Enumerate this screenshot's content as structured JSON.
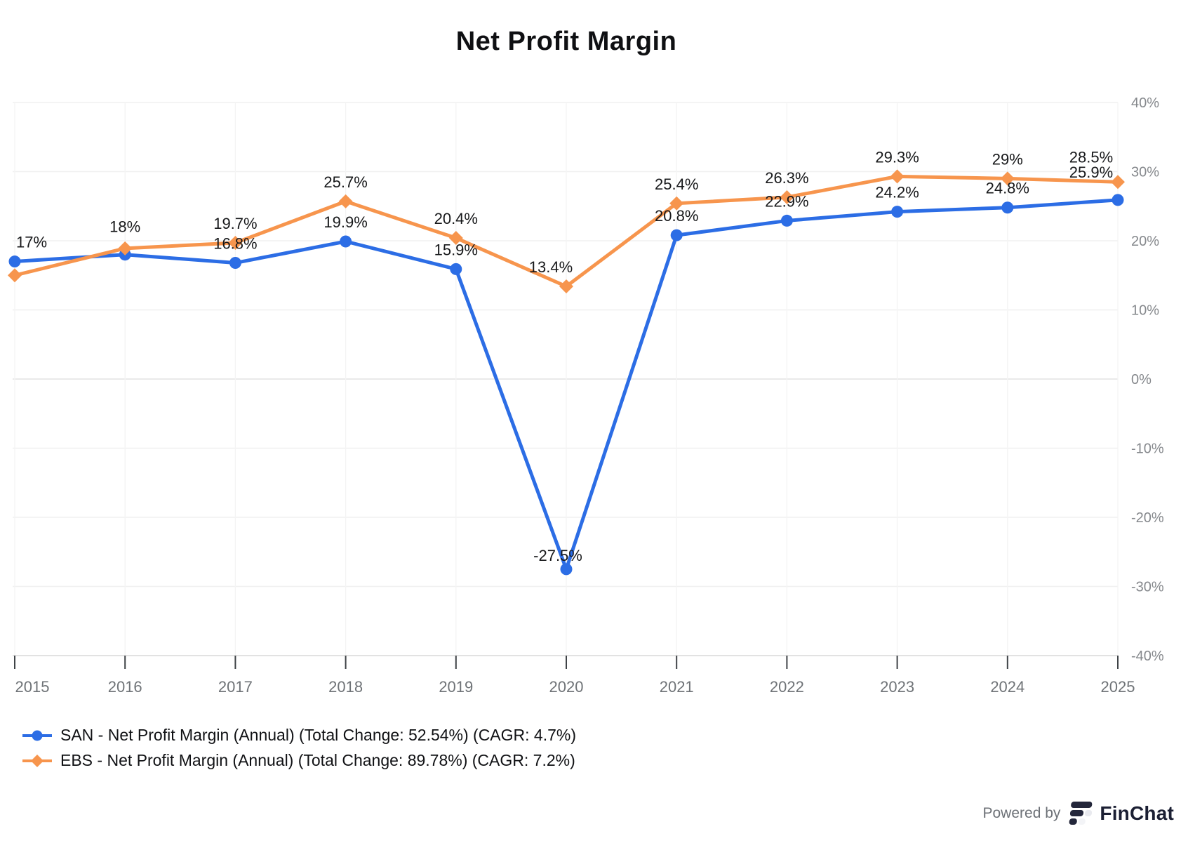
{
  "chart_data": {
    "type": "line",
    "title": "Net Profit Margin",
    "x": [
      2015,
      2016,
      2017,
      2018,
      2019,
      2020,
      2021,
      2022,
      2023,
      2024,
      2025
    ],
    "ylim": [
      -40,
      40
    ],
    "y_ticks": [
      {
        "value": 40,
        "label": "40%"
      },
      {
        "value": 30,
        "label": "30%"
      },
      {
        "value": 20,
        "label": "20%"
      },
      {
        "value": 10,
        "label": "10%"
      },
      {
        "value": 0,
        "label": "0%"
      },
      {
        "value": -10,
        "label": "-10%"
      },
      {
        "value": -20,
        "label": "-20%"
      },
      {
        "value": -30,
        "label": "-30%"
      },
      {
        "value": -40,
        "label": "-40%"
      }
    ],
    "grid": true,
    "y_axis_side": "right",
    "legend_position": "bottom-left",
    "series": [
      {
        "id": "san",
        "name": "SAN - Net Profit Margin (Annual) (Total Change: 52.54%) (CAGR: 4.7%)",
        "color": "#2C6DE5",
        "marker": "circle",
        "values": [
          17,
          18,
          16.8,
          19.9,
          15.9,
          -27.5,
          20.8,
          22.9,
          24.2,
          24.8,
          25.9
        ],
        "labels": [
          "17%",
          "18%",
          "16.8%",
          "19.9%",
          "15.9%",
          "-27.5%",
          "20.8%",
          "22.9%",
          "24.2%",
          "24.8%",
          "25.9%"
        ],
        "label_offsets": [
          [
            24,
            0
          ],
          [
            0,
            -12
          ],
          null,
          null,
          null,
          [
            -12,
            8
          ],
          null,
          null,
          null,
          null,
          [
            -38,
            -12
          ]
        ]
      },
      {
        "id": "ebs",
        "name": "EBS - Net Profit Margin (Annual) (Total Change: 89.78%) (CAGR: 7.2%)",
        "color": "#F7954D",
        "marker": "diamond",
        "values": [
          15,
          18.9,
          19.7,
          25.7,
          20.4,
          13.4,
          25.4,
          26.3,
          29.3,
          29,
          28.5
        ],
        "labels": [
          null,
          null,
          "19.7%",
          "25.7%",
          "20.4%",
          "13.4%",
          "25.4%",
          "26.3%",
          "29.3%",
          "29%",
          "28.5%"
        ],
        "label_offsets": [
          null,
          null,
          null,
          null,
          null,
          [
            -22,
            0
          ],
          null,
          null,
          null,
          null,
          [
            -38,
            -8
          ]
        ]
      }
    ]
  },
  "footer": {
    "powered_by": "Powered by",
    "brand": "FinChat"
  }
}
